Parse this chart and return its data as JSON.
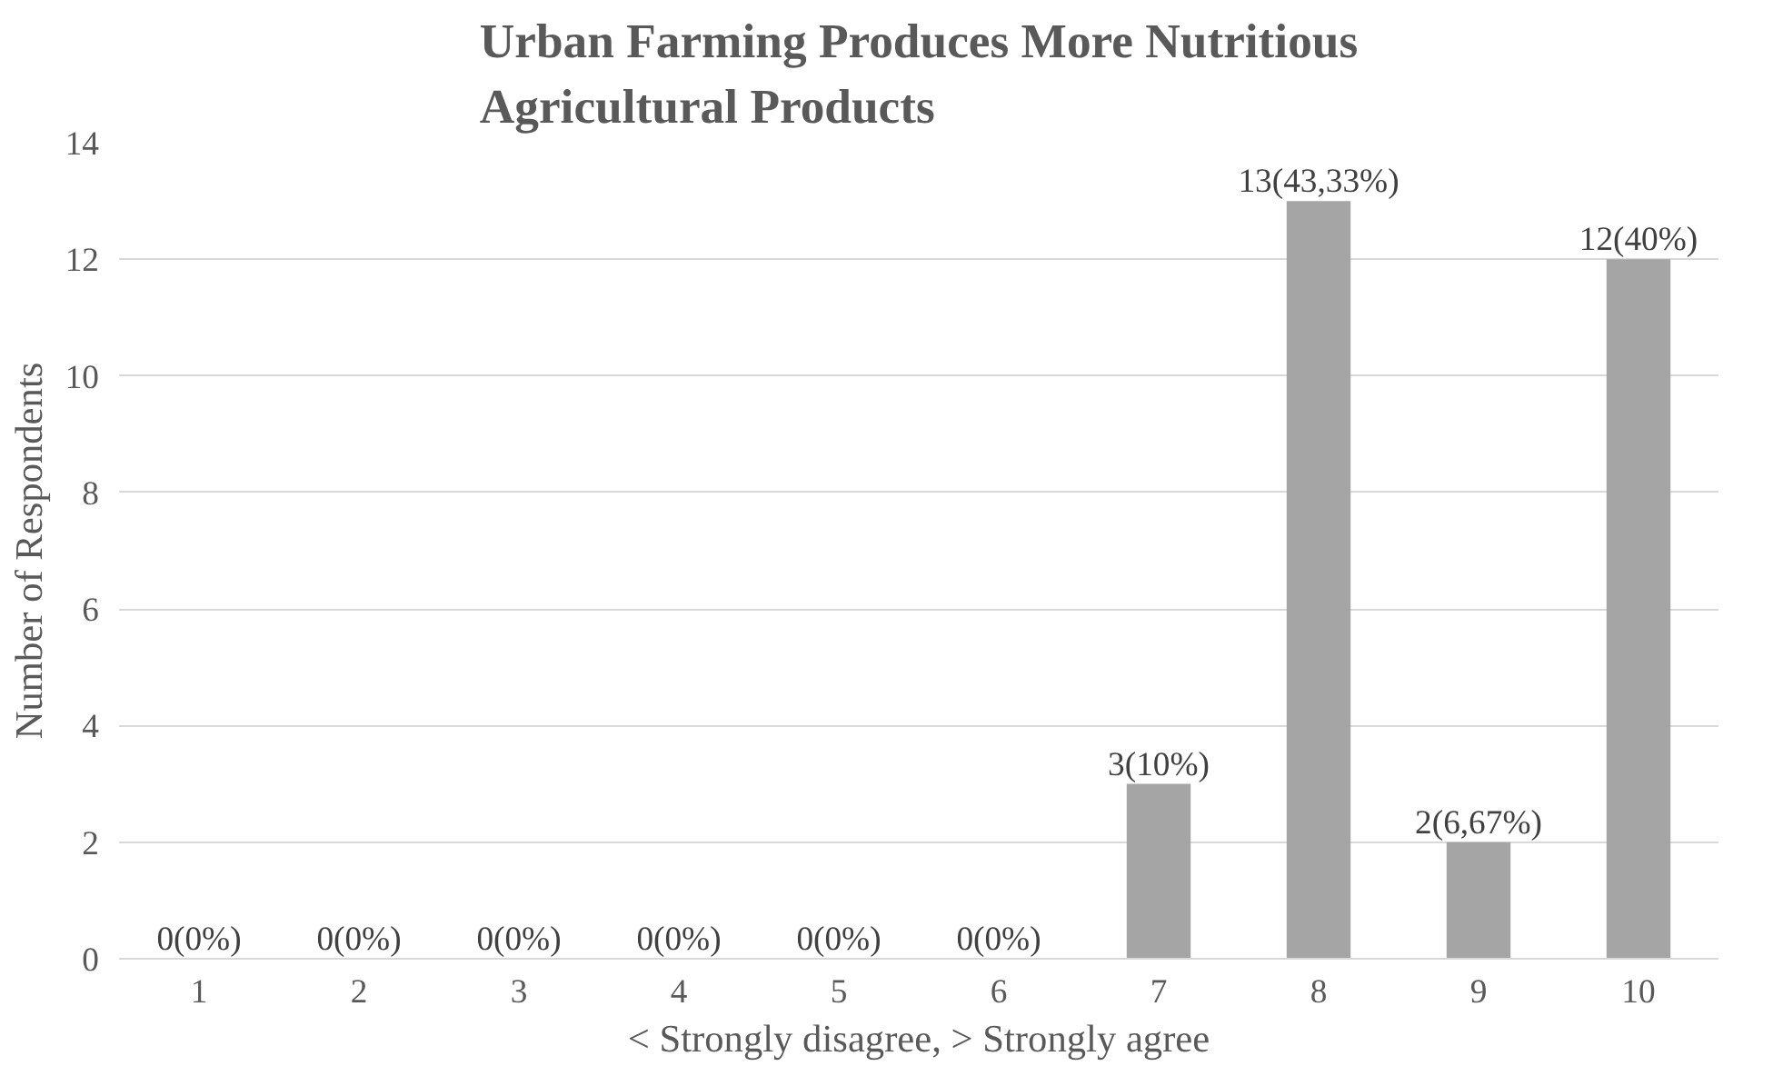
{
  "chart_data": {
    "type": "bar",
    "title": "Urban Farming Produces More Nutritious\nAgricultural Products",
    "xlabel": "< Strongly disagree, > Strongly agree",
    "ylabel": "Number of Respondents",
    "categories": [
      "1",
      "2",
      "3",
      "4",
      "5",
      "6",
      "7",
      "8",
      "9",
      "10"
    ],
    "values": [
      0,
      0,
      0,
      0,
      0,
      0,
      3,
      13,
      2,
      12
    ],
    "value_labels": [
      "0(0%)",
      "0(0%)",
      "0(0%)",
      "0(0%)",
      "0(0%)",
      "0(0%)",
      "3(10%)",
      "13(43,33%)",
      "2(6,67%)",
      "12(40%)"
    ],
    "color": "#a5a5a5",
    "ylim": [
      0,
      14
    ],
    "yticks": [
      0,
      2,
      4,
      6,
      8,
      10,
      12,
      14
    ],
    "grid": "y"
  }
}
